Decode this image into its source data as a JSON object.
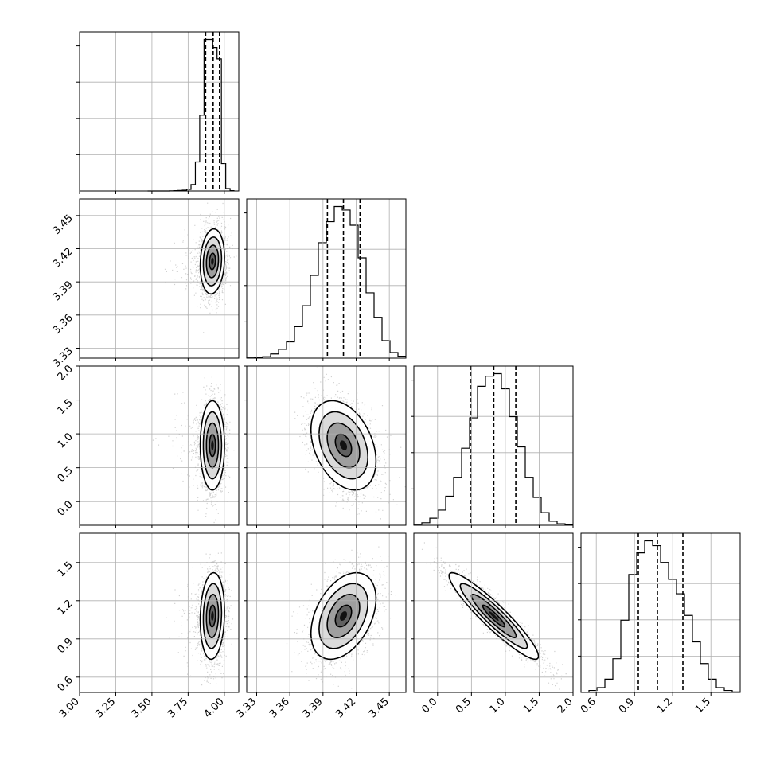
{
  "chart_data": {
    "type": "corner",
    "grid": true,
    "ticks": {
      "v0": [
        "3.00",
        "3.25",
        "3.50",
        "3.75",
        "4.00"
      ],
      "v1": [
        "3.33",
        "3.36",
        "3.39",
        "3.42",
        "3.45"
      ],
      "v2": [
        "0.0",
        "0.5",
        "1.0",
        "1.5",
        "2.0"
      ],
      "v3": [
        "0.6",
        "0.9",
        "1.2",
        "1.5"
      ]
    },
    "ranges": {
      "v0": [
        3.0,
        4.1
      ],
      "v1": [
        3.321,
        3.465
      ],
      "v2": [
        -0.35,
        2.0
      ],
      "v3": [
        0.48,
        1.73
      ]
    },
    "histograms": [
      {
        "variable": "v0",
        "quantiles": [
          3.871,
          3.923,
          3.967
        ],
        "bin_edges": [
          3.47,
          3.5,
          3.53,
          3.56,
          3.59,
          3.62,
          3.65,
          3.68,
          3.71,
          3.74,
          3.77,
          3.8,
          3.83,
          3.86,
          3.89,
          3.92,
          3.95,
          3.98,
          4.01,
          4.04,
          4.07
        ],
        "counts": [
          0,
          0,
          0,
          0,
          0,
          1,
          2,
          3,
          5,
          10,
          40,
          180,
          470,
          940,
          940,
          890,
          820,
          170,
          15,
          2
        ]
      },
      {
        "variable": "v1",
        "quantiles": [
          3.394,
          3.4085,
          3.4235
        ],
        "bin_edges": [
          3.321,
          3.3282,
          3.3354,
          3.3426,
          3.3498,
          3.357,
          3.3642,
          3.3714,
          3.3786,
          3.3858,
          3.393,
          3.4002,
          3.4074,
          3.4146,
          3.4218,
          3.429,
          3.4362,
          3.4434,
          3.4506,
          3.4578,
          3.465
        ],
        "counts": [
          1,
          3,
          6,
          18,
          38,
          70,
          135,
          225,
          355,
          495,
          585,
          650,
          635,
          570,
          430,
          280,
          175,
          75,
          24,
          8
        ]
      },
      {
        "variable": "v2",
        "quantiles": [
          0.495,
          0.83,
          1.155
        ],
        "bin_edges": [
          -0.35,
          -0.2325,
          -0.115,
          0.0025,
          0.12,
          0.2375,
          0.355,
          0.4725,
          0.59,
          0.7075,
          0.825,
          0.9425,
          1.06,
          1.1775,
          1.295,
          1.4125,
          1.53,
          1.6475,
          1.765,
          1.8825,
          2.0
        ],
        "counts": [
          4,
          10,
          28,
          60,
          115,
          190,
          305,
          425,
          550,
          590,
          600,
          540,
          430,
          310,
          190,
          110,
          50,
          16,
          6,
          2
        ]
      },
      {
        "variable": "v3",
        "quantiles": [
          0.93,
          1.08,
          1.28
        ],
        "bin_edges": [
          0.48,
          0.5425,
          0.605,
          0.6675,
          0.73,
          0.7925,
          0.855,
          0.9175,
          0.98,
          1.0425,
          1.105,
          1.1675,
          1.23,
          1.2925,
          1.355,
          1.4175,
          1.48,
          1.5425,
          1.605,
          1.6675,
          1.73
        ],
        "counts": [
          1,
          8,
          20,
          55,
          140,
          300,
          490,
          580,
          630,
          610,
          540,
          470,
          410,
          320,
          210,
          120,
          55,
          20,
          8,
          2
        ]
      }
    ],
    "pairs": [
      {
        "x": "v0",
        "y": "v1",
        "mean": [
          3.918,
          3.4085
        ],
        "sd": [
          0.042,
          0.0147
        ],
        "corr": 0.12
      },
      {
        "x": "v0",
        "y": "v2",
        "mean": [
          3.918,
          0.83
        ],
        "sd": [
          0.042,
          0.33
        ],
        "corr": 0.0
      },
      {
        "x": "v1",
        "y": "v2",
        "mean": [
          3.4085,
          0.83
        ],
        "sd": [
          0.0147,
          0.33
        ],
        "corr": -0.35
      },
      {
        "x": "v0",
        "y": "v3",
        "mean": [
          3.918,
          1.08
        ],
        "sd": [
          0.042,
          0.17
        ],
        "corr": 0.1
      },
      {
        "x": "v1",
        "y": "v3",
        "mean": [
          3.4085,
          1.08
        ],
        "sd": [
          0.0147,
          0.17
        ],
        "corr": 0.4
      },
      {
        "x": "v2",
        "y": "v3",
        "mean": [
          0.83,
          1.08
        ],
        "sd": [
          0.33,
          0.17
        ],
        "corr": -0.93
      }
    ],
    "contour_levels_sigma": [
      0.5,
      1.0,
      1.5,
      2.0
    ]
  }
}
